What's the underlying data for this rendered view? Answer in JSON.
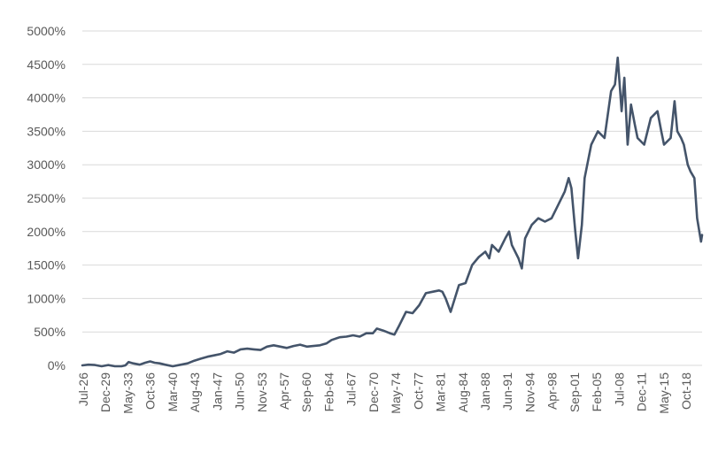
{
  "chart_data": {
    "type": "line",
    "title": "",
    "xlabel": "",
    "ylabel": "",
    "ylim": [
      0,
      5000
    ],
    "y_ticks": [
      "0%",
      "500%",
      "1000%",
      "1500%",
      "2000%",
      "2500%",
      "3000%",
      "3500%",
      "4000%",
      "4500%",
      "5000%"
    ],
    "y_tick_values": [
      0,
      500,
      1000,
      1500,
      2000,
      2500,
      3000,
      3500,
      4000,
      4500,
      5000
    ],
    "x_range": [
      "1926-07",
      "2020-03"
    ],
    "x_ticks": [
      "Jul-26",
      "Dec-29",
      "May-33",
      "Oct-36",
      "Mar-40",
      "Aug-43",
      "Jan-47",
      "Jun-50",
      "Nov-53",
      "Apr-57",
      "Sep-60",
      "Feb-64",
      "Jul-67",
      "Dec-70",
      "May-74",
      "Oct-77",
      "Mar-81",
      "Aug-84",
      "Jan-88",
      "Jun-91",
      "Nov-94",
      "Apr-98",
      "Sep-01",
      "Feb-05",
      "Jul-08",
      "Dec-11",
      "May-15",
      "Oct-18"
    ],
    "grid": true,
    "legend": "none",
    "line_color": "#44546a",
    "series": [
      {
        "name": "",
        "points": [
          [
            "1926-07",
            0
          ],
          [
            "1927-06",
            10
          ],
          [
            "1928-06",
            5
          ],
          [
            "1929-06",
            -5
          ],
          [
            "1930-06",
            5
          ],
          [
            "1931-06",
            -5
          ],
          [
            "1932-06",
            -10
          ],
          [
            "1933-01",
            0
          ],
          [
            "1933-07",
            50
          ],
          [
            "1934-03",
            30
          ],
          [
            "1935-03",
            10
          ],
          [
            "1936-01",
            40
          ],
          [
            "1936-10",
            60
          ],
          [
            "1937-06",
            40
          ],
          [
            "1938-03",
            30
          ],
          [
            "1939-01",
            10
          ],
          [
            "1940-03",
            -5
          ],
          [
            "1941-06",
            10
          ],
          [
            "1942-06",
            30
          ],
          [
            "1943-06",
            70
          ],
          [
            "1944-06",
            100
          ],
          [
            "1945-06",
            130
          ],
          [
            "1946-06",
            150
          ],
          [
            "1947-06",
            170
          ],
          [
            "1948-06",
            210
          ],
          [
            "1949-06",
            190
          ],
          [
            "1950-06",
            240
          ],
          [
            "1951-06",
            250
          ],
          [
            "1952-06",
            240
          ],
          [
            "1953-06",
            230
          ],
          [
            "1954-06",
            280
          ],
          [
            "1955-06",
            300
          ],
          [
            "1956-06",
            280
          ],
          [
            "1957-06",
            260
          ],
          [
            "1958-06",
            290
          ],
          [
            "1959-06",
            310
          ],
          [
            "1960-06",
            280
          ],
          [
            "1961-06",
            290
          ],
          [
            "1962-06",
            300
          ],
          [
            "1963-06",
            330
          ],
          [
            "1964-03",
            380
          ],
          [
            "1965-06",
            420
          ],
          [
            "1966-06",
            430
          ],
          [
            "1967-06",
            450
          ],
          [
            "1968-06",
            430
          ],
          [
            "1969-06",
            480
          ],
          [
            "1970-06",
            480
          ],
          [
            "1971-01",
            550
          ],
          [
            "1972-01",
            520
          ],
          [
            "1973-01",
            480
          ],
          [
            "1973-09",
            460
          ],
          [
            "1974-06",
            600
          ],
          [
            "1975-06",
            800
          ],
          [
            "1976-06",
            780
          ],
          [
            "1977-06",
            900
          ],
          [
            "1978-06",
            1080
          ],
          [
            "1979-06",
            1100
          ],
          [
            "1980-06",
            1120
          ],
          [
            "1980-12",
            1100
          ],
          [
            "1981-06",
            1000
          ],
          [
            "1982-03",
            800
          ],
          [
            "1983-06",
            1200
          ],
          [
            "1984-06",
            1230
          ],
          [
            "1985-06",
            1500
          ],
          [
            "1986-06",
            1620
          ],
          [
            "1987-06",
            1700
          ],
          [
            "1988-01",
            1600
          ],
          [
            "1988-06",
            1800
          ],
          [
            "1989-06",
            1700
          ],
          [
            "1990-06",
            1900
          ],
          [
            "1991-01",
            2000
          ],
          [
            "1991-06",
            1800
          ],
          [
            "1992-06",
            1600
          ],
          [
            "1992-12",
            1450
          ],
          [
            "1993-06",
            1900
          ],
          [
            "1994-06",
            2100
          ],
          [
            "1995-06",
            2200
          ],
          [
            "1996-06",
            2150
          ],
          [
            "1997-06",
            2200
          ],
          [
            "1998-06",
            2400
          ],
          [
            "1999-06",
            2600
          ],
          [
            "2000-01",
            2800
          ],
          [
            "2000-06",
            2650
          ],
          [
            "2001-01",
            2000
          ],
          [
            "2001-06",
            1600
          ],
          [
            "2002-01",
            2100
          ],
          [
            "2002-06",
            2800
          ],
          [
            "2003-06",
            3300
          ],
          [
            "2004-06",
            3500
          ],
          [
            "2005-06",
            3400
          ],
          [
            "2006-06",
            4100
          ],
          [
            "2007-01",
            4200
          ],
          [
            "2007-06",
            4600
          ],
          [
            "2008-01",
            3800
          ],
          [
            "2008-06",
            4300
          ],
          [
            "2008-12",
            3300
          ],
          [
            "2009-06",
            3900
          ],
          [
            "2010-01",
            3600
          ],
          [
            "2010-06",
            3400
          ],
          [
            "2011-06",
            3300
          ],
          [
            "2012-06",
            3700
          ],
          [
            "2013-06",
            3800
          ],
          [
            "2014-01",
            3500
          ],
          [
            "2014-06",
            3300
          ],
          [
            "2015-06",
            3400
          ],
          [
            "2016-01",
            3950
          ],
          [
            "2016-06",
            3500
          ],
          [
            "2017-01",
            3400
          ],
          [
            "2017-06",
            3300
          ],
          [
            "2018-01",
            3000
          ],
          [
            "2018-06",
            2900
          ],
          [
            "2019-01",
            2800
          ],
          [
            "2019-06",
            2200
          ],
          [
            "2019-10",
            2000
          ],
          [
            "2020-01",
            1850
          ],
          [
            "2020-03",
            1950
          ]
        ]
      }
    ]
  }
}
